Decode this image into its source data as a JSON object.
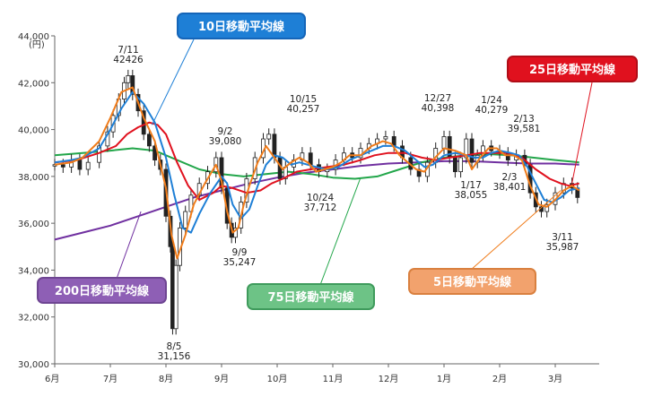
{
  "chart_data": {
    "type": "line",
    "y_unit": "(円)",
    "ylim": [
      30000,
      44000
    ],
    "y_ticks": [
      "44,000",
      "42,000",
      "40,000",
      "38,000",
      "36,000",
      "34,000",
      "32,000",
      "30,000"
    ],
    "x_ticks": [
      "6月",
      "7月",
      "8月",
      "9月",
      "10月",
      "11月",
      "12月",
      "1月",
      "2月",
      "3月"
    ],
    "annotations": [
      {
        "date": "7/11",
        "value": "42426"
      },
      {
        "date": "8/5",
        "value": "31,156"
      },
      {
        "date": "9/2",
        "value": "39,080"
      },
      {
        "date": "9/9",
        "value": "35,247"
      },
      {
        "date": "10/15",
        "value": "40,257"
      },
      {
        "date": "10/24",
        "value": "37,712"
      },
      {
        "date": "12/27",
        "value": "40,398"
      },
      {
        "date": "1/17",
        "value": "38,055"
      },
      {
        "date": "1/24",
        "value": "40,279"
      },
      {
        "date": "2/3",
        "value": "38,401"
      },
      {
        "date": "2/13",
        "value": "39,581"
      },
      {
        "date": "3/11",
        "value": "35,987"
      }
    ],
    "series": [
      {
        "name": "5日移動平均線",
        "color": "#F07C1A",
        "points": [
          [
            0,
            38500
          ],
          [
            0.3,
            38600
          ],
          [
            0.5,
            38800
          ],
          [
            0.8,
            39500
          ],
          [
            1.0,
            40500
          ],
          [
            1.2,
            41600
          ],
          [
            1.4,
            41800
          ],
          [
            1.6,
            40500
          ],
          [
            1.8,
            39500
          ],
          [
            2.0,
            37500
          ],
          [
            2.1,
            35500
          ],
          [
            2.2,
            34500
          ],
          [
            2.35,
            35500
          ],
          [
            2.5,
            36800
          ],
          [
            2.7,
            37700
          ],
          [
            2.9,
            38500
          ],
          [
            3.0,
            37800
          ],
          [
            3.1,
            36500
          ],
          [
            3.2,
            35600
          ],
          [
            3.3,
            35800
          ],
          [
            3.4,
            36800
          ],
          [
            3.5,
            37600
          ],
          [
            3.65,
            38600
          ],
          [
            3.8,
            39300
          ],
          [
            3.95,
            38800
          ],
          [
            4.1,
            38300
          ],
          [
            4.25,
            38600
          ],
          [
            4.4,
            38800
          ],
          [
            4.55,
            38600
          ],
          [
            4.7,
            38200
          ],
          [
            4.85,
            38300
          ],
          [
            5.0,
            38400
          ],
          [
            5.15,
            38600
          ],
          [
            5.3,
            38900
          ],
          [
            5.5,
            38900
          ],
          [
            5.7,
            39300
          ],
          [
            5.9,
            39500
          ],
          [
            6.05,
            39400
          ],
          [
            6.2,
            38900
          ],
          [
            6.35,
            38600
          ],
          [
            6.5,
            38300
          ],
          [
            6.65,
            38200
          ],
          [
            6.8,
            38700
          ],
          [
            7.0,
            39200
          ],
          [
            7.2,
            39100
          ],
          [
            7.4,
            38900
          ],
          [
            7.5,
            38300
          ],
          [
            7.65,
            38800
          ],
          [
            7.8,
            39200
          ],
          [
            7.95,
            39200
          ],
          [
            8.1,
            38900
          ],
          [
            8.25,
            38900
          ],
          [
            8.4,
            38700
          ],
          [
            8.55,
            37600
          ],
          [
            8.7,
            36800
          ],
          [
            8.85,
            36700
          ],
          [
            9.0,
            37000
          ],
          [
            9.15,
            37400
          ],
          [
            9.3,
            37600
          ],
          [
            9.43,
            37400
          ]
        ]
      },
      {
        "name": "10日移動平均線",
        "color": "#1E7FD6",
        "points": [
          [
            0,
            38600
          ],
          [
            0.3,
            38700
          ],
          [
            0.5,
            38800
          ],
          [
            0.8,
            39200
          ],
          [
            1.0,
            40000
          ],
          [
            1.2,
            40900
          ],
          [
            1.4,
            41600
          ],
          [
            1.6,
            41100
          ],
          [
            1.8,
            40300
          ],
          [
            2.0,
            38800
          ],
          [
            2.15,
            37200
          ],
          [
            2.3,
            35800
          ],
          [
            2.45,
            35600
          ],
          [
            2.6,
            36400
          ],
          [
            2.8,
            37300
          ],
          [
            3.0,
            38000
          ],
          [
            3.1,
            37700
          ],
          [
            3.2,
            36800
          ],
          [
            3.35,
            36200
          ],
          [
            3.5,
            36600
          ],
          [
            3.65,
            37600
          ],
          [
            3.8,
            38500
          ],
          [
            3.95,
            38900
          ],
          [
            4.1,
            38800
          ],
          [
            4.25,
            38500
          ],
          [
            4.4,
            38600
          ],
          [
            4.55,
            38500
          ],
          [
            4.7,
            38400
          ],
          [
            4.9,
            38300
          ],
          [
            5.1,
            38400
          ],
          [
            5.3,
            38700
          ],
          [
            5.5,
            38900
          ],
          [
            5.7,
            39100
          ],
          [
            5.9,
            39300
          ],
          [
            6.1,
            39300
          ],
          [
            6.3,
            39100
          ],
          [
            6.5,
            38700
          ],
          [
            6.65,
            38400
          ],
          [
            6.8,
            38500
          ],
          [
            7.0,
            38900
          ],
          [
            7.2,
            39000
          ],
          [
            7.4,
            38900
          ],
          [
            7.55,
            38800
          ],
          [
            7.7,
            38800
          ],
          [
            7.85,
            39000
          ],
          [
            8.0,
            39100
          ],
          [
            8.2,
            39000
          ],
          [
            8.35,
            38900
          ],
          [
            8.5,
            38400
          ],
          [
            8.65,
            37700
          ],
          [
            8.8,
            37000
          ],
          [
            8.95,
            36900
          ],
          [
            9.1,
            37100
          ],
          [
            9.25,
            37400
          ],
          [
            9.43,
            37500
          ]
        ]
      },
      {
        "name": "25日移動平均線",
        "color": "#E0111E",
        "points": [
          [
            0,
            38600
          ],
          [
            0.4,
            38700
          ],
          [
            0.8,
            39000
          ],
          [
            1.1,
            39300
          ],
          [
            1.3,
            39800
          ],
          [
            1.5,
            40100
          ],
          [
            1.7,
            40300
          ],
          [
            1.85,
            40200
          ],
          [
            2.0,
            39800
          ],
          [
            2.2,
            38600
          ],
          [
            2.4,
            37600
          ],
          [
            2.6,
            37000
          ],
          [
            2.85,
            37300
          ],
          [
            3.0,
            37600
          ],
          [
            3.2,
            37500
          ],
          [
            3.45,
            37300
          ],
          [
            3.7,
            37400
          ],
          [
            3.9,
            37700
          ],
          [
            4.1,
            37900
          ],
          [
            4.35,
            38200
          ],
          [
            4.6,
            38300
          ],
          [
            4.9,
            38400
          ],
          [
            5.2,
            38500
          ],
          [
            5.5,
            38700
          ],
          [
            5.75,
            38900
          ],
          [
            6.0,
            39000
          ],
          [
            6.3,
            39000
          ],
          [
            6.6,
            38800
          ],
          [
            6.85,
            38700
          ],
          [
            7.1,
            38800
          ],
          [
            7.4,
            38900
          ],
          [
            7.65,
            39000
          ],
          [
            7.9,
            39000
          ],
          [
            8.15,
            39000
          ],
          [
            8.4,
            38800
          ],
          [
            8.65,
            38300
          ],
          [
            8.9,
            37900
          ],
          [
            9.1,
            37700
          ],
          [
            9.25,
            37600
          ],
          [
            9.43,
            37700
          ]
        ]
      },
      {
        "name": "75日移動平均線",
        "color": "#22A64A",
        "points": [
          [
            0,
            38900
          ],
          [
            0.5,
            39000
          ],
          [
            1.0,
            39100
          ],
          [
            1.4,
            39200
          ],
          [
            1.8,
            39100
          ],
          [
            2.2,
            38700
          ],
          [
            2.6,
            38300
          ],
          [
            3.0,
            38100
          ],
          [
            3.4,
            38000
          ],
          [
            3.8,
            38100
          ],
          [
            4.2,
            38200
          ],
          [
            4.6,
            38100
          ],
          [
            5.0,
            37950
          ],
          [
            5.4,
            37900
          ],
          [
            5.8,
            38000
          ],
          [
            6.2,
            38300
          ],
          [
            6.6,
            38600
          ],
          [
            7.0,
            38800
          ],
          [
            7.4,
            38900
          ],
          [
            7.8,
            38950
          ],
          [
            8.2,
            38900
          ],
          [
            8.6,
            38800
          ],
          [
            9.0,
            38700
          ],
          [
            9.43,
            38600
          ]
        ]
      },
      {
        "name": "200日移動平均線",
        "color": "#7030A0",
        "points": [
          [
            0,
            35300
          ],
          [
            0.5,
            35600
          ],
          [
            1.0,
            35900
          ],
          [
            1.5,
            36300
          ],
          [
            2.0,
            36700
          ],
          [
            2.5,
            37100
          ],
          [
            3.0,
            37400
          ],
          [
            3.5,
            37700
          ],
          [
            4.0,
            37950
          ],
          [
            4.5,
            38150
          ],
          [
            5.0,
            38300
          ],
          [
            5.5,
            38450
          ],
          [
            6.0,
            38550
          ],
          [
            6.5,
            38600
          ],
          [
            7.0,
            38650
          ],
          [
            7.5,
            38650
          ],
          [
            8.0,
            38600
          ],
          [
            8.5,
            38550
          ],
          [
            9.0,
            38550
          ],
          [
            9.43,
            38500
          ]
        ]
      }
    ],
    "candles": [
      [
        0,
        38500
      ],
      [
        0.15,
        38400
      ],
      [
        0.3,
        38700
      ],
      [
        0.45,
        38300
      ],
      [
        0.6,
        38600
      ],
      [
        0.8,
        39300
      ],
      [
        0.95,
        39900
      ],
      [
        1.05,
        40600
      ],
      [
        1.15,
        41300
      ],
      [
        1.25,
        42000
      ],
      [
        1.32,
        42300
      ],
      [
        1.4,
        41500
      ],
      [
        1.5,
        40800
      ],
      [
        1.6,
        39800
      ],
      [
        1.7,
        39300
      ],
      [
        1.8,
        38700
      ],
      [
        1.9,
        38300
      ],
      [
        2.0,
        36300
      ],
      [
        2.08,
        35000
      ],
      [
        2.12,
        31500
      ],
      [
        2.18,
        34200
      ],
      [
        2.25,
        35800
      ],
      [
        2.35,
        36500
      ],
      [
        2.45,
        37200
      ],
      [
        2.6,
        37700
      ],
      [
        2.75,
        38200
      ],
      [
        2.9,
        38800
      ],
      [
        3.0,
        37500
      ],
      [
        3.1,
        36000
      ],
      [
        3.18,
        35400
      ],
      [
        3.25,
        35800
      ],
      [
        3.35,
        36900
      ],
      [
        3.45,
        37900
      ],
      [
        3.6,
        38800
      ],
      [
        3.75,
        39600
      ],
      [
        3.85,
        39800
      ],
      [
        3.95,
        38800
      ],
      [
        4.05,
        37900
      ],
      [
        4.15,
        38400
      ],
      [
        4.3,
        38700
      ],
      [
        4.45,
        39000
      ],
      [
        4.6,
        38500
      ],
      [
        4.75,
        38200
      ],
      [
        4.9,
        38300
      ],
      [
        5.05,
        38700
      ],
      [
        5.2,
        39000
      ],
      [
        5.35,
        38800
      ],
      [
        5.5,
        39200
      ],
      [
        5.65,
        39400
      ],
      [
        5.8,
        39600
      ],
      [
        5.95,
        39700
      ],
      [
        6.1,
        39300
      ],
      [
        6.25,
        38800
      ],
      [
        6.4,
        38300
      ],
      [
        6.55,
        38000
      ],
      [
        6.7,
        38600
      ],
      [
        6.85,
        39200
      ],
      [
        7.0,
        39700
      ],
      [
        7.1,
        38800
      ],
      [
        7.2,
        38200
      ],
      [
        7.3,
        38800
      ],
      [
        7.4,
        39600
      ],
      [
        7.5,
        38600
      ],
      [
        7.6,
        38900
      ],
      [
        7.7,
        39300
      ],
      [
        7.85,
        39100
      ],
      [
        8.0,
        39000
      ],
      [
        8.15,
        38700
      ],
      [
        8.3,
        38900
      ],
      [
        8.45,
        38500
      ],
      [
        8.55,
        37300
      ],
      [
        8.65,
        36700
      ],
      [
        8.75,
        36500
      ],
      [
        8.85,
        36800
      ],
      [
        9.0,
        37300
      ],
      [
        9.15,
        37700
      ],
      [
        9.3,
        37500
      ],
      [
        9.4,
        37100
      ]
    ],
    "legends": {
      "ma10": {
        "label": "10日移動平均線",
        "color": "#1E7FD6"
      },
      "ma25": {
        "label": "25日移動平均線",
        "color": "#E0111E"
      },
      "ma200": {
        "label": "200日移動平均線",
        "color": "#8E5FB5"
      },
      "ma75": {
        "label": "75日移動平均線",
        "color": "#6DC386"
      },
      "ma5": {
        "label": "5日移動平均線",
        "color": "#F2A26D"
      }
    }
  }
}
